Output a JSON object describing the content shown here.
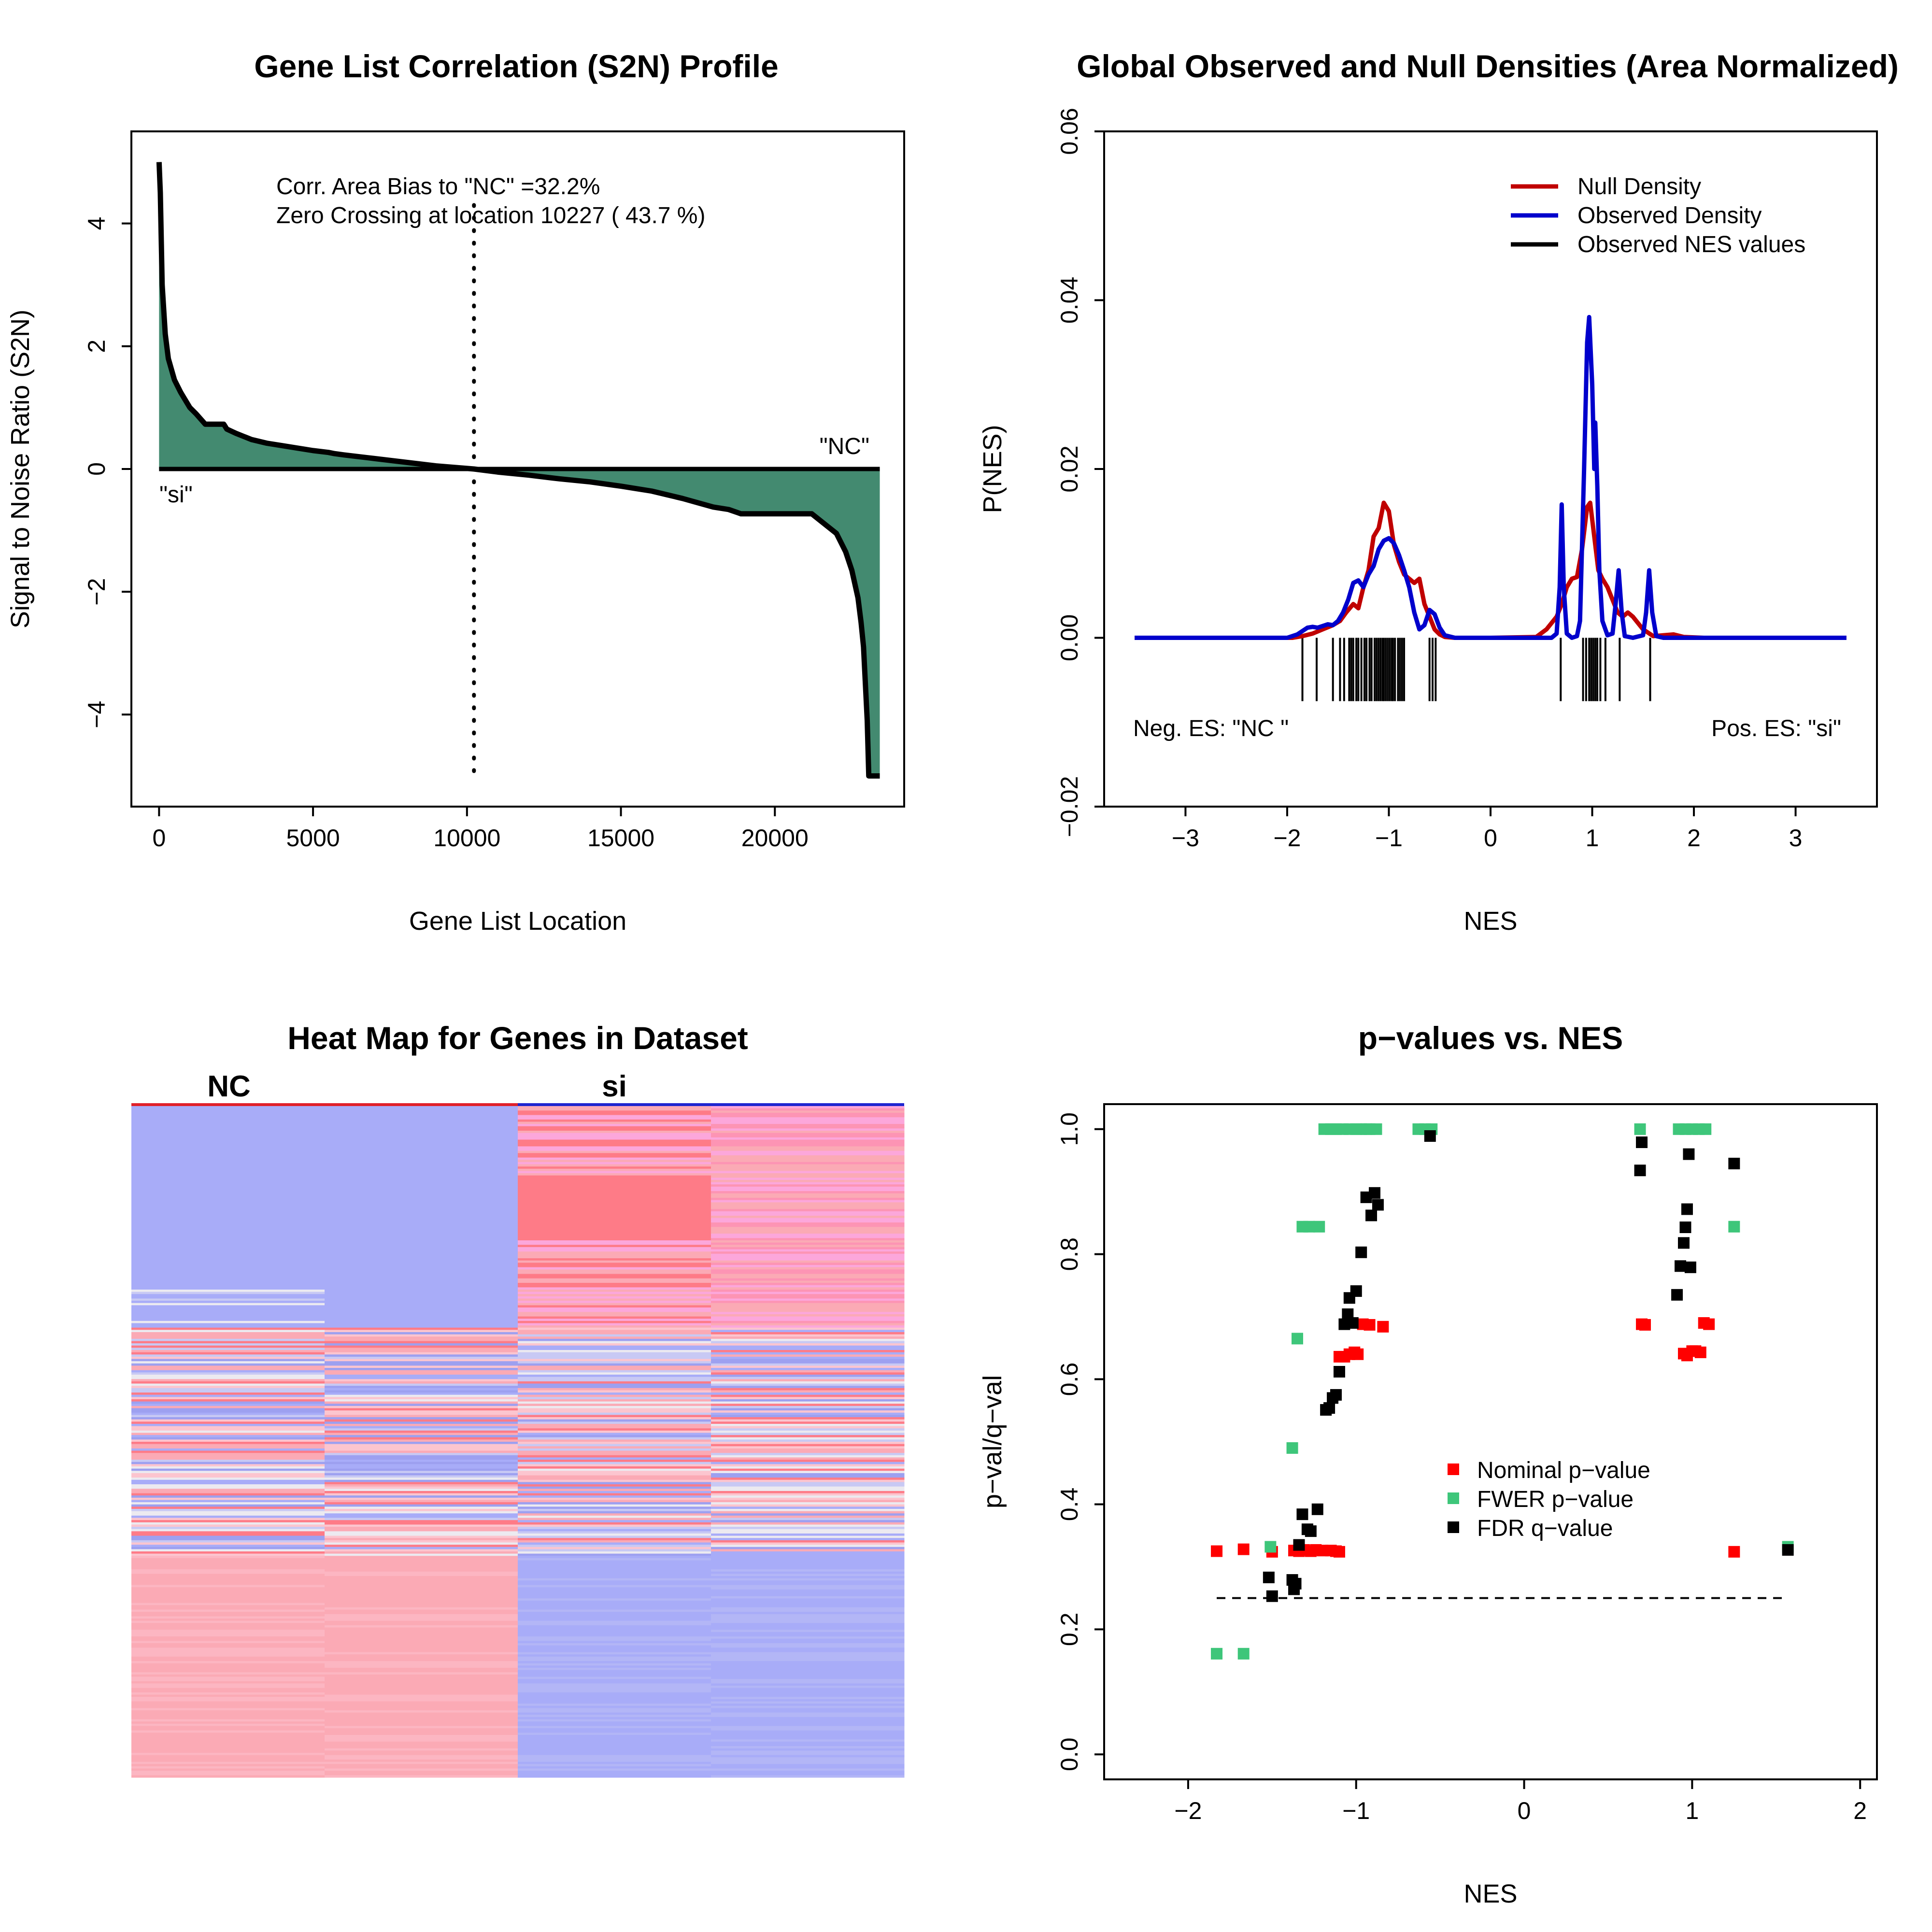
{
  "chart_data": [
    {
      "type": "area",
      "title": "Gene List Correlation (S2N) Profile",
      "xlabel": "Gene List Location",
      "ylabel": "Signal to Noise Ratio (S2N)",
      "xlim": [
        -900,
        24200
      ],
      "ylim": [
        -5.5,
        5.5
      ],
      "xticks": [
        0,
        5000,
        10000,
        15000,
        20000
      ],
      "xtick_labels": [
        "0",
        "5000",
        "10000",
        "15000",
        "20000"
      ],
      "yticks": [
        -4,
        -2,
        0,
        2,
        4
      ],
      "ytick_labels": [
        "−4",
        "−2",
        "0",
        "2",
        "4"
      ],
      "annotations": [
        "Corr. Area Bias to \"NC\" =32.2%",
        "Zero Crossing at location  10227  ( 43.7  %)"
      ],
      "label_positive": "\"si\"",
      "label_negative": "\"NC\"",
      "zero_crossing": 10227,
      "fill_color": "#438a70",
      "x": [
        0,
        40,
        100,
        200,
        300,
        500,
        700,
        1000,
        1200,
        1500,
        2100,
        2200,
        2500,
        3000,
        3500,
        4000,
        4500,
        5000,
        5500,
        5700,
        6000,
        7000,
        8000,
        9000,
        10227,
        11000,
        12000,
        13000,
        14000,
        15000,
        16000,
        16500,
        17000,
        17500,
        18000,
        18500,
        18900,
        21200,
        21500,
        22000,
        22300,
        22500,
        22700,
        22800,
        22880,
        22950,
        23000,
        23050,
        23200,
        23408
      ],
      "y": [
        5.0,
        4.5,
        3.0,
        2.2,
        1.8,
        1.45,
        1.25,
        1.0,
        0.9,
        0.73,
        0.73,
        0.65,
        0.58,
        0.48,
        0.42,
        0.38,
        0.34,
        0.3,
        0.27,
        0.25,
        0.23,
        0.17,
        0.11,
        0.05,
        0.0,
        -0.05,
        -0.1,
        -0.16,
        -0.21,
        -0.28,
        -0.36,
        -0.42,
        -0.48,
        -0.55,
        -0.62,
        -0.66,
        -0.73,
        -0.73,
        -0.85,
        -1.05,
        -1.35,
        -1.65,
        -2.1,
        -2.5,
        -2.9,
        -3.6,
        -4.1,
        -5.0,
        -5.0,
        -5.0
      ]
    },
    {
      "type": "line",
      "title": "Global Observed and Null Densities (Area Normalized)",
      "xlabel": "NES",
      "ylabel": "P(NES)",
      "xlim": [
        -3.8,
        3.8
      ],
      "ylim": [
        -0.02,
        0.06
      ],
      "xticks": [
        -3,
        -2,
        -1,
        0,
        1,
        2,
        3
      ],
      "xtick_labels": [
        "−3",
        "−2",
        "−1",
        "0",
        "1",
        "2",
        "3"
      ],
      "yticks": [
        -0.02,
        0.0,
        0.02,
        0.04,
        0.06
      ],
      "ytick_labels": [
        "−0.02",
        "0.00",
        "0.02",
        "0.04",
        "0.06"
      ],
      "legend": "top-right",
      "neg_label": "Neg. ES: \"NC \"",
      "pos_label": "Pos. ES: \"si\"",
      "series": [
        {
          "name": "Null Density",
          "color": "#c00000",
          "x": [
            -3.5,
            -2.2,
            -1.95,
            -1.85,
            -1.75,
            -1.65,
            -1.55,
            -1.48,
            -1.42,
            -1.35,
            -1.3,
            -1.25,
            -1.2,
            -1.15,
            -1.1,
            -1.05,
            -1.0,
            -0.95,
            -0.9,
            -0.85,
            -0.8,
            -0.75,
            -0.7,
            -0.65,
            -0.6,
            -0.55,
            -0.5,
            -0.45,
            -0.35,
            0.0,
            0.45,
            0.55,
            0.65,
            0.7,
            0.75,
            0.8,
            0.85,
            0.9,
            0.95,
            0.98,
            1.02,
            1.06,
            1.1,
            1.15,
            1.2,
            1.25,
            1.3,
            1.35,
            1.4,
            1.5,
            1.6,
            1.7,
            1.8,
            1.9,
            2.1,
            3.5
          ],
          "y": [
            0,
            0,
            0,
            0.0002,
            0.0005,
            0.001,
            0.0015,
            0.002,
            0.003,
            0.004,
            0.0035,
            0.006,
            0.008,
            0.012,
            0.013,
            0.016,
            0.015,
            0.011,
            0.009,
            0.0075,
            0.007,
            0.0065,
            0.007,
            0.004,
            0.0025,
            0.001,
            0.0004,
            0.0001,
            0,
            0,
            0.0001,
            0.001,
            0.0025,
            0.004,
            0.006,
            0.007,
            0.0072,
            0.0105,
            0.0155,
            0.016,
            0.012,
            0.008,
            0.007,
            0.006,
            0.0045,
            0.003,
            0.0025,
            0.003,
            0.0025,
            0.001,
            0.0002,
            0.0003,
            0.0004,
            0.0001,
            0,
            0
          ]
        },
        {
          "name": "Observed Density",
          "color": "#0000cc",
          "x": [
            -3.5,
            -2.2,
            -2.0,
            -1.95,
            -1.9,
            -1.85,
            -1.8,
            -1.75,
            -1.7,
            -1.65,
            -1.6,
            -1.55,
            -1.5,
            -1.45,
            -1.4,
            -1.35,
            -1.3,
            -1.25,
            -1.2,
            -1.15,
            -1.1,
            -1.05,
            -1.0,
            -0.95,
            -0.9,
            -0.85,
            -0.8,
            -0.75,
            -0.7,
            -0.65,
            -0.6,
            -0.55,
            -0.5,
            -0.45,
            -0.35,
            0.0,
            0.6,
            0.65,
            0.68,
            0.7,
            0.72,
            0.75,
            0.8,
            0.85,
            0.88,
            0.92,
            0.95,
            0.97,
            1.0,
            1.02,
            1.03,
            1.05,
            1.07,
            1.1,
            1.15,
            1.2,
            1.23,
            1.26,
            1.29,
            1.32,
            1.4,
            1.5,
            1.53,
            1.56,
            1.59,
            1.63,
            1.7,
            2.1,
            3.5
          ],
          "y": [
            0,
            0,
            0,
            0.0002,
            0.0004,
            0.0008,
            0.0012,
            0.0013,
            0.0012,
            0.0014,
            0.0016,
            0.0015,
            0.002,
            0.003,
            0.0045,
            0.0065,
            0.0068,
            0.006,
            0.0075,
            0.0085,
            0.0105,
            0.0115,
            0.0118,
            0.0112,
            0.0098,
            0.008,
            0.006,
            0.003,
            0.001,
            0.0015,
            0.0033,
            0.0028,
            0.0012,
            0.0003,
            0,
            0,
            0,
            0.0005,
            0.006,
            0.0158,
            0.006,
            0.0005,
            0,
            0.0002,
            0.002,
            0.02,
            0.035,
            0.038,
            0.03,
            0.02,
            0.0255,
            0.018,
            0.008,
            0.002,
            0.0003,
            0.0005,
            0.004,
            0.008,
            0.003,
            0.0002,
            0,
            0.0003,
            0.003,
            0.008,
            0.003,
            0.0002,
            0,
            0,
            0
          ]
        }
      ],
      "observed_nes_name": "Observed NES values",
      "observed_nes_color": "#000000",
      "observed_nes": [
        -1.85,
        -1.71,
        -1.55,
        -1.48,
        -1.44,
        -1.39,
        -1.37,
        -1.35,
        -1.32,
        -1.3,
        -1.27,
        -1.24,
        -1.22,
        -1.19,
        -1.17,
        -1.14,
        -1.12,
        -1.1,
        -1.08,
        -1.06,
        -1.05,
        -1.03,
        -1.01,
        -0.99,
        -0.97,
        -0.96,
        -0.94,
        -0.91,
        -0.89,
        -0.87,
        -0.85,
        -0.6,
        -0.57,
        -0.54,
        0.69,
        0.91,
        0.94,
        0.97,
        0.99,
        1.01,
        1.03,
        1.05,
        1.08,
        1.13,
        1.27,
        1.57
      ]
    },
    {
      "type": "heatmap",
      "title": "Heat Map for Genes in Dataset",
      "column_groups": [
        "NC",
        "si"
      ],
      "group_colors": [
        "#e0212b",
        "#1f25d0"
      ],
      "columns": 4,
      "rows": 300,
      "base_colors": {
        "blue": "#a8acf8",
        "pink": "#fbaab5",
        "red": "#fe7b87",
        "pinkish": "#fca7db",
        "white": "#eceaf0"
      }
    },
    {
      "type": "scatter",
      "title": "p−values vs. NES",
      "xlabel": "NES",
      "ylabel": "p−val/q−val",
      "xlim": [
        -2.5,
        2.1
      ],
      "ylim": [
        -0.04,
        1.04
      ],
      "xticks": [
        -2,
        -1,
        0,
        1,
        2
      ],
      "xtick_labels": [
        "−2",
        "−1",
        "0",
        "1",
        "2"
      ],
      "yticks": [
        0.0,
        0.2,
        0.4,
        0.6,
        0.8,
        1.0
      ],
      "ytick_labels": [
        "0.0",
        "0.2",
        "0.4",
        "0.6",
        "0.8",
        "1.0"
      ],
      "legend": "center-right",
      "threshold_line": 0.25,
      "series": [
        {
          "name": "Nominal p−value",
          "color": "#ff0000",
          "x": [
            -1.83,
            -1.67,
            -1.5,
            -1.37,
            -1.34,
            -1.31,
            -1.27,
            -1.24,
            -1.2,
            -1.15,
            -1.12,
            -1.1,
            -1.1,
            -1.07,
            -1.04,
            -1.01,
            -0.99,
            -0.96,
            -0.92,
            -0.84,
            0.7,
            0.72,
            0.95,
            0.97,
            1.0,
            1.02,
            1.05,
            1.07,
            1.1,
            1.25
          ],
          "y": [
            0.325,
            0.328,
            0.324,
            0.326,
            0.325,
            0.327,
            0.325,
            0.327,
            0.326,
            0.326,
            0.325,
            0.324,
            0.636,
            0.636,
            0.64,
            0.643,
            0.64,
            0.688,
            0.687,
            0.684,
            0.688,
            0.687,
            0.641,
            0.638,
            0.645,
            0.645,
            0.643,
            0.69,
            0.688,
            0.324
          ]
        },
        {
          "name": "FWER p−value",
          "color": "#3ec67a",
          "x": [
            -1.83,
            -1.67,
            -1.51,
            -1.38,
            -1.35,
            -1.32,
            -1.28,
            -1.22,
            -1.19,
            -1.15,
            -1.12,
            -1.08,
            -1.04,
            -1.0,
            -0.97,
            -0.94,
            -0.92,
            -0.88,
            -0.63,
            -0.59,
            -0.55,
            0.69,
            0.92,
            0.96,
            1.0,
            1.04,
            1.08,
            1.25,
            1.57
          ],
          "y": [
            0.161,
            0.161,
            0.332,
            0.49,
            0.665,
            0.844,
            0.844,
            0.844,
            1.0,
            1.0,
            1.0,
            1.0,
            1.0,
            1.0,
            1.0,
            1.0,
            1.0,
            1.0,
            1.0,
            1.0,
            1.0,
            1.0,
            1.0,
            1.0,
            1.0,
            1.0,
            1.0,
            0.844,
            0.332
          ]
        },
        {
          "name": "FDR q−value",
          "color": "#000000",
          "x": [
            -1.52,
            -1.5,
            -1.38,
            -1.37,
            -1.36,
            -1.34,
            -1.32,
            -1.29,
            -1.27,
            -1.23,
            -1.18,
            -1.16,
            -1.14,
            -1.12,
            -1.1,
            -1.07,
            -1.05,
            -1.04,
            -1.02,
            -1.0,
            -0.97,
            -0.94,
            -0.91,
            -0.89,
            -0.87,
            -0.56,
            0.69,
            0.7,
            0.91,
            0.93,
            0.95,
            0.96,
            0.97,
            0.98,
            0.99,
            1.25,
            1.57
          ],
          "y": [
            0.283,
            0.253,
            0.279,
            0.264,
            0.273,
            0.335,
            0.384,
            0.36,
            0.357,
            0.392,
            0.551,
            0.554,
            0.57,
            0.575,
            0.612,
            0.688,
            0.704,
            0.73,
            0.69,
            0.741,
            0.803,
            0.891,
            0.862,
            0.898,
            0.879,
            0.989,
            0.934,
            0.979,
            0.735,
            0.781,
            0.818,
            0.843,
            0.872,
            0.96,
            0.779,
            0.945,
            0.327
          ]
        }
      ]
    }
  ]
}
